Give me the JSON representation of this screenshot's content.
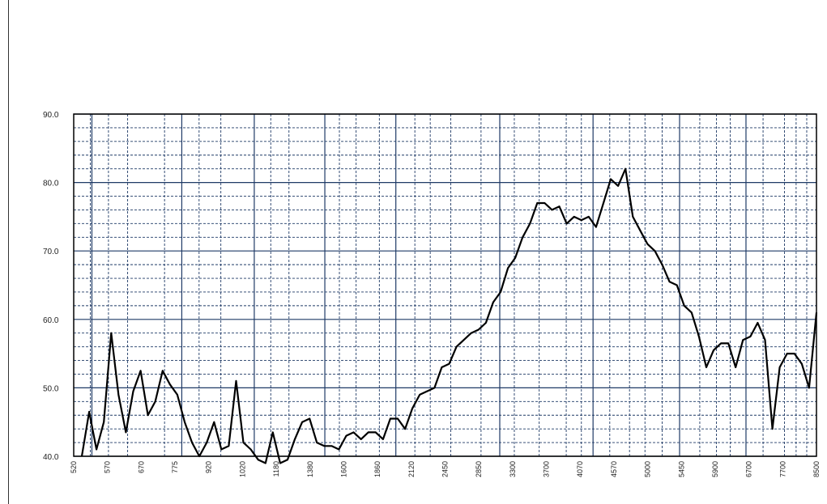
{
  "chart_data": {
    "type": "line",
    "title": "",
    "xlabel": "",
    "ylabel": "",
    "ylim": [
      40,
      90
    ],
    "y_ticks": [
      "90.0",
      "80.0",
      "70.0",
      "60.0",
      "50.0",
      "40.0"
    ],
    "x_ticks": [
      "520",
      "570",
      "670",
      "775",
      "920",
      "1020",
      "1180",
      "1380",
      "1600",
      "1860",
      "2120",
      "2450",
      "2850",
      "3300",
      "3700",
      "4070",
      "4570",
      "5000",
      "5450",
      "5900",
      "6700",
      "7700",
      "8500"
    ],
    "grid": true,
    "line_color": "#000000",
    "grid_color": "#1f3a66",
    "values": [
      40,
      46.5,
      41,
      45,
      58,
      49,
      43.5,
      49.5,
      52.5,
      46,
      48,
      52.5,
      50.5,
      49,
      45,
      42,
      40,
      42,
      45,
      41,
      41.5,
      51,
      42,
      41,
      39.5,
      39,
      43.5,
      39,
      39.5,
      42.5,
      45,
      45.5,
      42,
      41.5,
      41.5,
      41,
      43,
      43.5,
      42.5,
      43.5,
      43.5,
      42.5,
      45.5,
      45.5,
      44,
      47,
      49,
      49.5,
      50,
      53,
      53.5,
      56,
      57,
      58,
      58.5,
      59.5,
      62.5,
      64,
      67.5,
      69,
      72,
      74,
      77,
      77,
      76,
      76.5,
      74,
      75,
      74.5,
      75,
      73.5,
      77,
      80.5,
      79.5,
      82,
      75,
      73,
      71,
      70,
      68,
      65.5,
      65,
      62,
      61,
      57.5,
      53,
      55.5,
      56.5,
      56.5,
      53,
      57,
      57.5,
      59.5,
      57,
      44,
      53,
      55,
      55,
      53.5,
      50,
      61
    ]
  }
}
